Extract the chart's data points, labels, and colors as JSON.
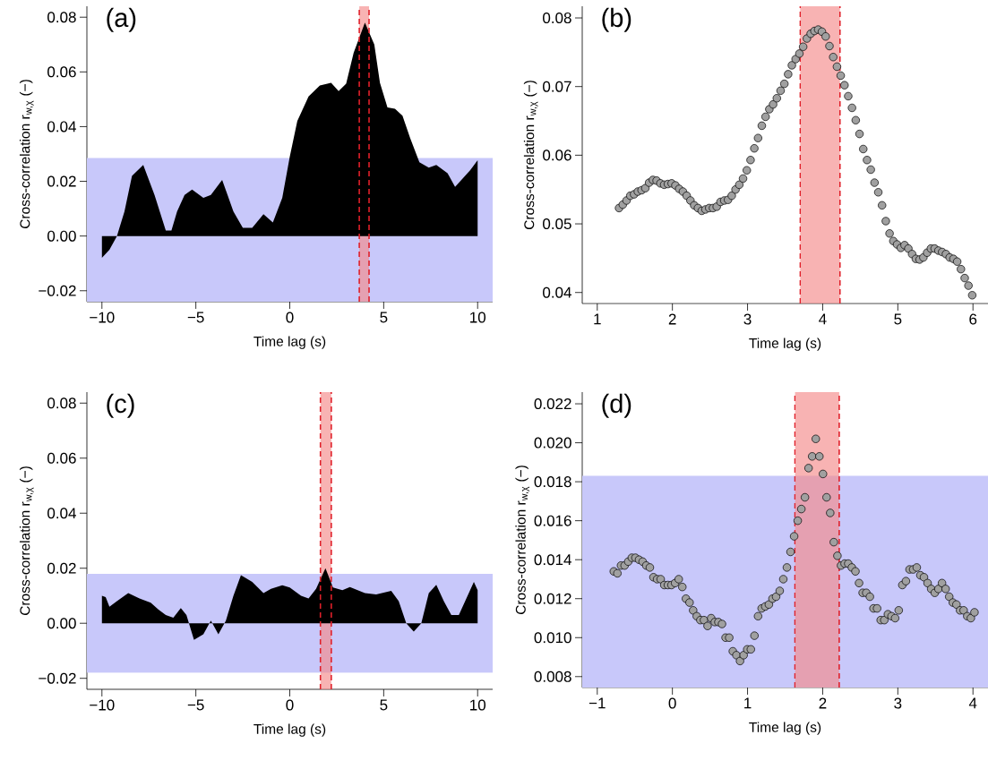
{
  "chart_data": [
    {
      "type": "area",
      "title": "(a)",
      "xlabel": "Time lag (s)",
      "ylabel": "Cross-correlation r$_{w,χ}$ (−)",
      "color": "#000000",
      "x": [
        -10,
        -9.6,
        -9.2,
        -8.8,
        -8.4,
        -7.8,
        -7.2,
        -6.6,
        -6.3,
        -6.0,
        -5.6,
        -5.2,
        -4.6,
        -4.2,
        -3.6,
        -3.0,
        -2.5,
        -2.0,
        -1.4,
        -0.9,
        -0.4,
        0,
        0.4,
        1.0,
        1.6,
        2.2,
        2.6,
        3.0,
        3.4,
        4.0,
        4.5,
        4.8,
        5.2,
        5.6,
        6.0,
        6.4,
        6.9,
        7.4,
        7.8,
        8.4,
        8.8,
        9.2,
        9.6,
        10
      ],
      "values": [
        -0.008,
        -0.005,
        0.0,
        0.009,
        0.022,
        0.026,
        0.015,
        0.002,
        0.002,
        0.009,
        0.015,
        0.017,
        0.014,
        0.015,
        0.0205,
        0.009,
        0.003,
        0.003,
        0.008,
        0.005,
        0.014,
        0.029,
        0.042,
        0.051,
        0.055,
        0.056,
        0.053,
        0.0557,
        0.067,
        0.078,
        0.07,
        0.056,
        0.047,
        0.0465,
        0.044,
        0.036,
        0.027,
        0.025,
        0.026,
        0.023,
        0.018,
        0.021,
        0.024,
        0.0277
      ],
      "xlim": [
        -10.8,
        10.8
      ],
      "ylim": [
        -0.024,
        0.084
      ],
      "xticks": [
        {
          "value": -10,
          "label": "−10"
        },
        {
          "value": -5,
          "label": "−5"
        },
        0,
        5,
        10
      ],
      "yticks": [
        {
          "value": -0.02,
          "label": "−0.02"
        },
        {
          "value": 0,
          "label": "0.00"
        },
        {
          "value": 0.02,
          "label": "0.02"
        },
        {
          "value": 0.04,
          "label": "0.04"
        },
        {
          "value": 0.06,
          "label": "0.06"
        },
        {
          "value": 0.08,
          "label": "0.08"
        }
      ],
      "bands": [
        {
          "axis": "y",
          "from": -0.024,
          "to": 0.0285,
          "color": "#c8c8fa"
        },
        {
          "axis": "x",
          "from": 3.7,
          "to": 4.22,
          "color": "#f58a8a"
        }
      ],
      "ref_lines": [
        {
          "axis": "x",
          "value": 3.7,
          "color": "#e0202a",
          "line_style": "dashed"
        },
        {
          "axis": "x",
          "value": 4.22,
          "color": "#e0202a",
          "line_style": "dashed"
        }
      ]
    },
    {
      "type": "scatter",
      "title": "(b)",
      "xlabel": "Time lag (s)",
      "ylabel": "Cross-correlation r$_{w,χ}$ (−)",
      "color": "#a0a0a0",
      "marker": "circle",
      "x": [
        1.29,
        1.34,
        1.39,
        1.44,
        1.49,
        1.54,
        1.59,
        1.64,
        1.69,
        1.74,
        1.79,
        1.84,
        1.89,
        1.94,
        1.99,
        2.04,
        2.09,
        2.14,
        2.19,
        2.24,
        2.29,
        2.34,
        2.39,
        2.44,
        2.49,
        2.54,
        2.59,
        2.64,
        2.69,
        2.74,
        2.79,
        2.84,
        2.89,
        2.94,
        2.99,
        3.04,
        3.09,
        3.14,
        3.19,
        3.24,
        3.29,
        3.34,
        3.39,
        3.44,
        3.49,
        3.54,
        3.59,
        3.64,
        3.69,
        3.74,
        3.79,
        3.84,
        3.89,
        3.94,
        3.99,
        4.04,
        4.09,
        4.14,
        4.19,
        4.24,
        4.29,
        4.34,
        4.39,
        4.44,
        4.49,
        4.54,
        4.59,
        4.64,
        4.69,
        4.74,
        4.79,
        4.84,
        4.89,
        4.94,
        4.99,
        5.04,
        5.09,
        5.14,
        5.19,
        5.24,
        5.29,
        5.34,
        5.39,
        5.44,
        5.49,
        5.54,
        5.59,
        5.64,
        5.69,
        5.74,
        5.79,
        5.84,
        5.89,
        5.94,
        5.99
      ],
      "values": [
        0.0523,
        0.0528,
        0.0534,
        0.0541,
        0.0543,
        0.0547,
        0.0549,
        0.0552,
        0.056,
        0.0564,
        0.0563,
        0.0559,
        0.0557,
        0.0558,
        0.0559,
        0.0556,
        0.0551,
        0.0547,
        0.0541,
        0.0534,
        0.0527,
        0.0523,
        0.0519,
        0.0521,
        0.0523,
        0.0523,
        0.0525,
        0.0532,
        0.0534,
        0.0535,
        0.0541,
        0.055,
        0.0557,
        0.0566,
        0.0578,
        0.0593,
        0.061,
        0.0625,
        0.0643,
        0.0656,
        0.0667,
        0.0674,
        0.0683,
        0.0694,
        0.0704,
        0.0718,
        0.0731,
        0.074,
        0.0748,
        0.0758,
        0.077,
        0.0777,
        0.0781,
        0.0783,
        0.078,
        0.0773,
        0.0759,
        0.0743,
        0.0729,
        0.0716,
        0.0702,
        0.0686,
        0.0669,
        0.0651,
        0.0631,
        0.0609,
        0.0593,
        0.0579,
        0.056,
        0.0546,
        0.0527,
        0.0504,
        0.0486,
        0.0475,
        0.047,
        0.0465,
        0.0469,
        0.0464,
        0.0456,
        0.0449,
        0.0448,
        0.0451,
        0.0458,
        0.0464,
        0.0464,
        0.0461,
        0.0459,
        0.0456,
        0.0451,
        0.0449,
        0.0445,
        0.0434,
        0.0421,
        0.041,
        0.0396
      ],
      "xlim": [
        0.8,
        6.2
      ],
      "ylim": [
        0.0384,
        0.0817
      ],
      "xticks": [
        1,
        2,
        3,
        4,
        5,
        6
      ],
      "yticks": [
        0.04,
        0.05,
        0.06,
        0.07,
        0.08
      ],
      "bands": [
        {
          "axis": "x",
          "from": 3.7,
          "to": 4.23,
          "color": "#f58a8a"
        }
      ],
      "ref_lines": [
        {
          "axis": "x",
          "value": 3.7,
          "color": "#e0202a",
          "line_style": "dashed"
        },
        {
          "axis": "x",
          "value": 4.23,
          "color": "#e0202a",
          "line_style": "dashed"
        }
      ]
    },
    {
      "type": "area",
      "title": "(c)",
      "xlabel": "Time lag (s)",
      "ylabel": "Cross-correlation r$_{w,χ}$ (−)",
      "color": "#000000",
      "x": [
        -10,
        -9.8,
        -9.6,
        -9.2,
        -8.6,
        -8.0,
        -7.4,
        -7.0,
        -6.6,
        -6.2,
        -5.8,
        -5.5,
        -5.1,
        -4.6,
        -4.2,
        -3.8,
        -3.4,
        -3.0,
        -2.6,
        -2.0,
        -1.4,
        -1.0,
        -0.4,
        0,
        0.6,
        1.0,
        1.4,
        1.9,
        2.3,
        2.8,
        3.2,
        4.0,
        4.6,
        5.4,
        5.8,
        6.2,
        6.6,
        7.0,
        7.4,
        7.8,
        8.2,
        8.6,
        9.0,
        9.4,
        9.8,
        10
      ],
      "values": [
        0.01,
        0.0095,
        0.006,
        0.008,
        0.011,
        0.009,
        0.0075,
        0.005,
        0.003,
        0.002,
        0.0055,
        0.003,
        -0.006,
        -0.004,
        0.001,
        -0.004,
        0.001,
        0.01,
        0.0175,
        0.015,
        0.011,
        0.0125,
        0.0138,
        0.013,
        0.01,
        0.009,
        0.0125,
        0.02,
        0.013,
        0.012,
        0.0132,
        0.011,
        0.0105,
        0.0118,
        0.008,
        0.0,
        -0.003,
        0.0,
        0.011,
        0.014,
        0.008,
        0.003,
        0.003,
        0.009,
        0.015,
        0.012
      ],
      "xlim": [
        -10.8,
        10.8
      ],
      "ylim": [
        -0.024,
        0.084
      ],
      "xticks": [
        {
          "value": -10,
          "label": "−10"
        },
        {
          "value": -5,
          "label": "−5"
        },
        0,
        5,
        10
      ],
      "yticks": [
        {
          "value": -0.02,
          "label": "−0.02"
        },
        {
          "value": 0,
          "label": "0.00"
        },
        {
          "value": 0.02,
          "label": "0.02"
        },
        {
          "value": 0.04,
          "label": "0.04"
        },
        {
          "value": 0.06,
          "label": "0.06"
        },
        {
          "value": 0.08,
          "label": "0.08"
        }
      ],
      "bands": [
        {
          "axis": "y",
          "from": -0.018,
          "to": 0.018,
          "color": "#c8c8fa"
        },
        {
          "axis": "x",
          "from": 1.63,
          "to": 2.21,
          "color": "#f58a8a"
        }
      ],
      "ref_lines": [
        {
          "axis": "x",
          "value": 1.63,
          "color": "#e0202a",
          "line_style": "dashed"
        },
        {
          "axis": "x",
          "value": 2.21,
          "color": "#e0202a",
          "line_style": "dashed"
        }
      ]
    },
    {
      "type": "scatter",
      "title": "(d)",
      "xlabel": "Time lag (s)",
      "ylabel": "Cross-correlation r$_{w,χ}$ (−)",
      "color": "#a0a0a0",
      "marker": "circle",
      "x": [
        -0.78,
        -0.732,
        -0.684,
        -0.636,
        -0.588,
        -0.54,
        -0.492,
        -0.444,
        -0.396,
        -0.348,
        -0.3,
        -0.252,
        -0.204,
        -0.156,
        -0.108,
        -0.06,
        -0.012,
        0.036,
        0.084,
        0.132,
        0.18,
        0.228,
        0.276,
        0.324,
        0.372,
        0.42,
        0.468,
        0.516,
        0.564,
        0.612,
        0.66,
        0.708,
        0.756,
        0.804,
        0.852,
        0.9,
        0.948,
        0.996,
        1.044,
        1.092,
        1.14,
        1.188,
        1.236,
        1.284,
        1.332,
        1.38,
        1.428,
        1.476,
        1.524,
        1.572,
        1.62,
        1.668,
        1.716,
        1.764,
        1.812,
        1.86,
        1.908,
        1.956,
        2.004,
        2.052,
        2.1,
        2.148,
        2.196,
        2.244,
        2.292,
        2.34,
        2.388,
        2.436,
        2.484,
        2.532,
        2.58,
        2.628,
        2.676,
        2.724,
        2.772,
        2.82,
        2.868,
        2.916,
        2.964,
        3.012,
        3.06,
        3.108,
        3.156,
        3.204,
        3.252,
        3.3,
        3.348,
        3.396,
        3.444,
        3.492,
        3.54,
        3.588,
        3.636,
        3.684,
        3.732,
        3.78,
        3.828,
        3.876,
        3.924,
        3.972,
        4.02
      ],
      "values": [
        0.0134,
        0.0133,
        0.0137,
        0.0137,
        0.0139,
        0.0141,
        0.0141,
        0.014,
        0.0139,
        0.0137,
        0.0136,
        0.0131,
        0.013,
        0.013,
        0.0127,
        0.0127,
        0.0127,
        0.0128,
        0.013,
        0.0126,
        0.012,
        0.0118,
        0.0114,
        0.0111,
        0.0109,
        0.0109,
        0.0106,
        0.011,
        0.0108,
        0.0108,
        0.0107,
        0.01,
        0.01,
        0.0093,
        0.0091,
        0.0088,
        0.0091,
        0.0094,
        0.0094,
        0.0101,
        0.0111,
        0.0115,
        0.0116,
        0.0117,
        0.012,
        0.0121,
        0.0124,
        0.013,
        0.0136,
        0.0144,
        0.0152,
        0.016,
        0.0166,
        0.0172,
        0.0187,
        0.0193,
        0.0202,
        0.0193,
        0.0184,
        0.0172,
        0.0164,
        0.0149,
        0.0142,
        0.0137,
        0.0138,
        0.0138,
        0.0136,
        0.0134,
        0.0128,
        0.0123,
        0.0123,
        0.0121,
        0.0115,
        0.0115,
        0.0109,
        0.0109,
        0.0112,
        0.0111,
        0.011,
        0.0114,
        0.0127,
        0.0129,
        0.0135,
        0.0135,
        0.0136,
        0.0132,
        0.0131,
        0.0128,
        0.0125,
        0.0123,
        0.0125,
        0.0128,
        0.0125,
        0.0121,
        0.0118,
        0.0117,
        0.0114,
        0.0114,
        0.0111,
        0.011,
        0.0113
      ],
      "xlim": [
        -1.2,
        4.2
      ],
      "ylim": [
        0.00744,
        0.0226
      ],
      "xticks": [
        {
          "value": -1,
          "label": "−1"
        },
        0,
        1,
        2,
        3,
        4
      ],
      "yticks": [
        {
          "value": 0.008,
          "label": "0.008"
        },
        {
          "value": 0.01,
          "label": "0.010"
        },
        {
          "value": 0.012,
          "label": "0.012"
        },
        {
          "value": 0.014,
          "label": "0.014"
        },
        {
          "value": 0.016,
          "label": "0.016"
        },
        {
          "value": 0.018,
          "label": "0.018"
        },
        {
          "value": 0.02,
          "label": "0.020"
        },
        {
          "value": 0.022,
          "label": "0.022"
        }
      ],
      "bands": [
        {
          "axis": "y",
          "from": 0.00744,
          "to": 0.0183,
          "color": "#c8c8fa"
        },
        {
          "axis": "x",
          "from": 1.63,
          "to": 2.22,
          "color": "#f58a8a"
        }
      ],
      "ref_lines": [
        {
          "axis": "x",
          "value": 1.63,
          "color": "#e0202a",
          "line_style": "dashed"
        },
        {
          "axis": "x",
          "value": 2.22,
          "color": "#e0202a",
          "line_style": "dashed"
        }
      ]
    }
  ]
}
